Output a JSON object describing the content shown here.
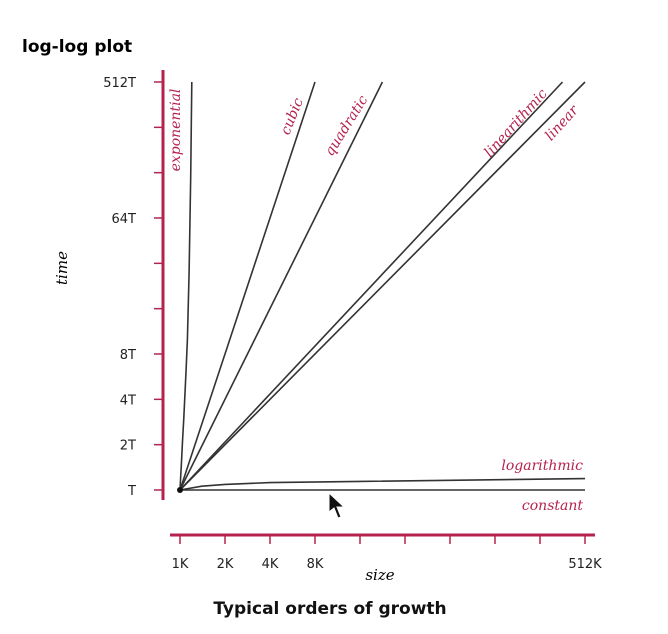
{
  "chart_data": {
    "type": "line",
    "title": "log-log plot",
    "caption": "Typical orders of growth",
    "xlabel": "size",
    "ylabel": "time",
    "x_scale": "log",
    "y_scale": "log",
    "x_ticks": [
      {
        "value": 1000,
        "label": "1K"
      },
      {
        "value": 2000,
        "label": "2K"
      },
      {
        "value": 4000,
        "label": "4K"
      },
      {
        "value": 8000,
        "label": "8K"
      },
      {
        "value": 16000,
        "label": ""
      },
      {
        "value": 32000,
        "label": ""
      },
      {
        "value": 64000,
        "label": ""
      },
      {
        "value": 128000,
        "label": ""
      },
      {
        "value": 256000,
        "label": ""
      },
      {
        "value": 512000,
        "label": "512K"
      }
    ],
    "y_ticks": [
      {
        "value": 1,
        "label": "T"
      },
      {
        "value": 2,
        "label": "2T"
      },
      {
        "value": 4,
        "label": "4T"
      },
      {
        "value": 8,
        "label": "8T"
      },
      {
        "value": 16,
        "label": ""
      },
      {
        "value": 32,
        "label": ""
      },
      {
        "value": 64,
        "label": "64T"
      },
      {
        "value": 128,
        "label": ""
      },
      {
        "value": 256,
        "label": ""
      },
      {
        "value": 512,
        "label": "512T"
      }
    ],
    "series": [
      {
        "name": "exponential",
        "x": [
          1000,
          1010,
          1020,
          1040,
          1060,
          1080,
          1100,
          1120,
          1150,
          1180,
          1200
        ],
        "y": [
          1,
          1.2,
          1.45,
          2.1,
          3,
          4.4,
          6.5,
          10,
          28,
          120,
          512
        ]
      },
      {
        "name": "cubic",
        "x": [
          1000,
          8000
        ],
        "y": [
          1,
          512
        ]
      },
      {
        "name": "quadratic",
        "x": [
          1000,
          22600
        ],
        "y": [
          1,
          512
        ]
      },
      {
        "name": "linearithmic",
        "x": [
          1000,
          362000
        ],
        "y": [
          1,
          512
        ]
      },
      {
        "name": "linear",
        "x": [
          1000,
          512000
        ],
        "y": [
          1,
          512
        ]
      },
      {
        "name": "logarithmic",
        "x": [
          1000,
          1400,
          2000,
          4000,
          16000,
          512000
        ],
        "y": [
          1,
          1.06,
          1.09,
          1.12,
          1.14,
          1.19
        ]
      },
      {
        "name": "constant",
        "x": [
          1000,
          512000
        ],
        "y": [
          1,
          1
        ]
      }
    ],
    "xlim": [
      1000,
      512000
    ],
    "ylim": [
      1,
      512
    ],
    "colors": {
      "accent": "#b5224e",
      "line": "#333333",
      "text": "#222222"
    }
  }
}
